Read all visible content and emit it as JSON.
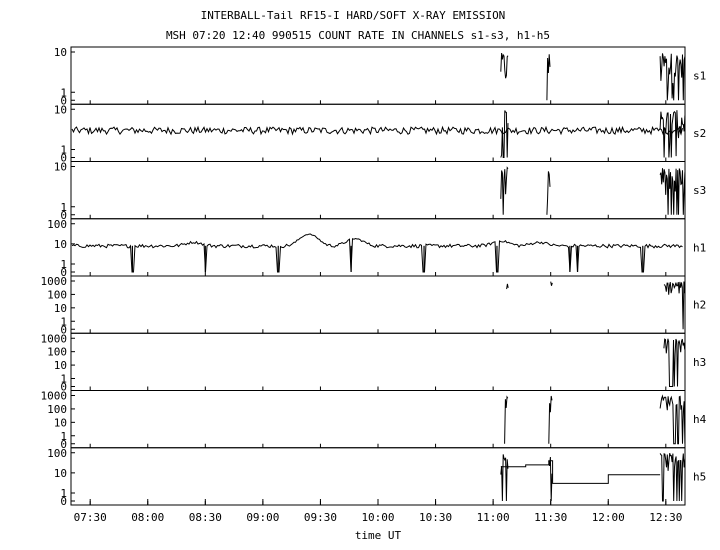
{
  "chart_data": {
    "type": "line",
    "title": "INTERBALL-Tail RF15-I HARD/SOFT X-RAY EMISSION",
    "subtitle": "MSH 07:20 12:40 990515  COUNT RATE IN CHANNELS s1-s3, h1-h5",
    "xlabel": "time UT",
    "x_range": [
      "07:20",
      "12:40"
    ],
    "x_ticks": [
      "07:30",
      "08:00",
      "08:30",
      "09:00",
      "09:30",
      "10:00",
      "10:30",
      "11:00",
      "11:30",
      "12:00",
      "12:30"
    ],
    "panels": [
      {
        "name": "s1",
        "y_ticks": [
          "10",
          "1",
          "0"
        ],
        "ylim": [
          0,
          10
        ],
        "scale": "log",
        "bursts": [
          [
            "11:04",
            "11:08"
          ],
          [
            "11:28",
            "11:30"
          ],
          [
            "12:27",
            "12:40"
          ]
        ],
        "baseline": 0
      },
      {
        "name": "s2",
        "y_ticks": [
          "10",
          "1",
          "0"
        ],
        "ylim": [
          0,
          10
        ],
        "scale": "log",
        "baseline": 3,
        "bursts": [
          [
            "11:04",
            "11:08"
          ],
          [
            "12:27",
            "12:40"
          ]
        ]
      },
      {
        "name": "s3",
        "y_ticks": [
          "10",
          "1",
          "0"
        ],
        "ylim": [
          0,
          10
        ],
        "scale": "log",
        "bursts": [
          [
            "11:04",
            "11:08"
          ],
          [
            "11:28",
            "11:30"
          ],
          [
            "12:27",
            "12:40"
          ]
        ],
        "baseline": 0
      },
      {
        "name": "h1",
        "y_ticks": [
          "100",
          "10",
          "1",
          "0"
        ],
        "ylim": [
          0,
          100
        ],
        "scale": "log",
        "baseline": 8,
        "peaks": [
          {
            "t": "08:24",
            "v": 12
          },
          {
            "t": "09:24",
            "v": 30
          },
          {
            "t": "09:48",
            "v": 18
          },
          {
            "t": "11:04",
            "v": 14
          },
          {
            "t": "11:24",
            "v": 12
          }
        ],
        "dropouts": [
          "07:52",
          "08:30",
          "09:08",
          "09:46",
          "10:24",
          "11:02",
          "11:40",
          "11:44",
          "12:18"
        ]
      },
      {
        "name": "h2",
        "y_ticks": [
          "1000",
          "100",
          "10",
          "1",
          "0"
        ],
        "ylim": [
          0,
          1000
        ],
        "scale": "log",
        "bursts": [
          [
            "11:07",
            "11:08"
          ],
          [
            "11:30",
            "11:31"
          ],
          [
            "12:29",
            "12:40"
          ]
        ],
        "baseline": 0
      },
      {
        "name": "h3",
        "y_ticks": [
          "1000",
          "100",
          "10",
          "1",
          "0"
        ],
        "ylim": [
          0,
          1000
        ],
        "scale": "log",
        "bursts": [
          [
            "12:29",
            "12:40"
          ]
        ],
        "baseline": 0
      },
      {
        "name": "h4",
        "y_ticks": [
          "1000",
          "100",
          "10",
          "1",
          "0"
        ],
        "ylim": [
          0,
          1000
        ],
        "scale": "log",
        "bursts": [
          [
            "11:06",
            "11:08"
          ],
          [
            "11:29",
            "11:31"
          ],
          [
            "12:27",
            "12:40"
          ]
        ],
        "baseline": 0
      },
      {
        "name": "h5",
        "y_ticks": [
          "100",
          "10",
          "1",
          "0"
        ],
        "ylim": [
          0,
          100
        ],
        "scale": "log",
        "bursts": [
          [
            "11:04",
            "11:08"
          ],
          [
            "11:29",
            "11:31"
          ],
          [
            "12:27",
            "12:40"
          ]
        ],
        "steps": [
          {
            "t": "11:04",
            "v": 20
          },
          {
            "t": "11:17",
            "v": 25
          },
          {
            "t": "11:29",
            "v": 40
          },
          {
            "t": "11:31",
            "v": 3
          },
          {
            "t": "12:00",
            "v": 8
          },
          {
            "t": "12:27",
            "v": 8
          }
        ],
        "baseline": 0
      }
    ]
  }
}
